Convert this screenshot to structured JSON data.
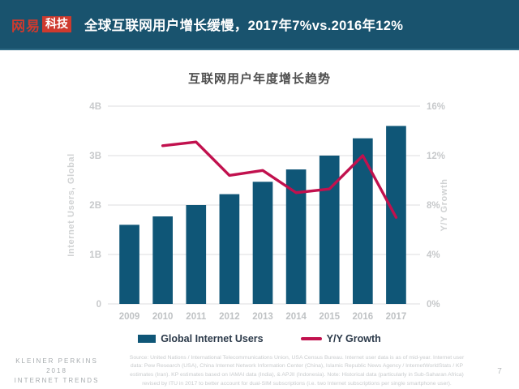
{
  "header": {
    "logo_primary": "网易",
    "logo_badge": "科技",
    "title": "全球互联网用户增长缓慢，2017年7%vs.2016年12%"
  },
  "chart_data": {
    "type": "bar",
    "title": "互联网用户年度增长趋势",
    "categories": [
      "2009",
      "2010",
      "2011",
      "2012",
      "2013",
      "2014",
      "2015",
      "2016",
      "2017"
    ],
    "series": [
      {
        "name": "Global Internet Users",
        "type": "bar",
        "axis": "left",
        "unit": "billions",
        "values": [
          1.6,
          1.77,
          2.0,
          2.22,
          2.47,
          2.72,
          3.0,
          3.35,
          3.6
        ],
        "color": "#0f5677"
      },
      {
        "name": "Y/Y Growth",
        "type": "line",
        "axis": "right",
        "unit": "%",
        "values": [
          null,
          12.8,
          13.1,
          10.4,
          10.8,
          9.0,
          9.3,
          12.0,
          7.0
        ],
        "color": "#c1114e"
      }
    ],
    "left_axis": {
      "label": "Internet Users, Global",
      "min": 0,
      "max": 4,
      "ticks": [
        "0",
        "1B",
        "2B",
        "3B",
        "4B"
      ]
    },
    "right_axis": {
      "label": "Y/Y Growth",
      "min": 0,
      "max": 16,
      "ticks": [
        "0%",
        "4%",
        "8%",
        "12%",
        "16%"
      ]
    },
    "grid": true,
    "legend_position": "bottom"
  },
  "footer": {
    "brand_lines": [
      "KLEINER PERKINS",
      "2018",
      "INTERNET TRENDS"
    ],
    "source_lines": [
      "Source: United Nations / International Telecommunications Union, USA Census Bureau. Internet user data is as of mid-year. Internet user",
      "data: Pew Research (USA), China Internet Network Information Center (China), Islamic Republic News Agency / InternetWorldStats / KP",
      "estimates (Iran). KP estimates based on IAMAI data (India), & APJII (Indonesia). Note: Historical data (particularly in Sub-Saharan Africa)",
      "revised by ITU in 2017 to better account for dual-SIM subscriptions (i.e. two Internet subscriptions per single smartphone user)."
    ],
    "page_number": "7"
  },
  "colors": {
    "header_bg": "#19536e",
    "logo_red": "#ce3a2e",
    "bar": "#0f5677",
    "line": "#c1114e"
  }
}
